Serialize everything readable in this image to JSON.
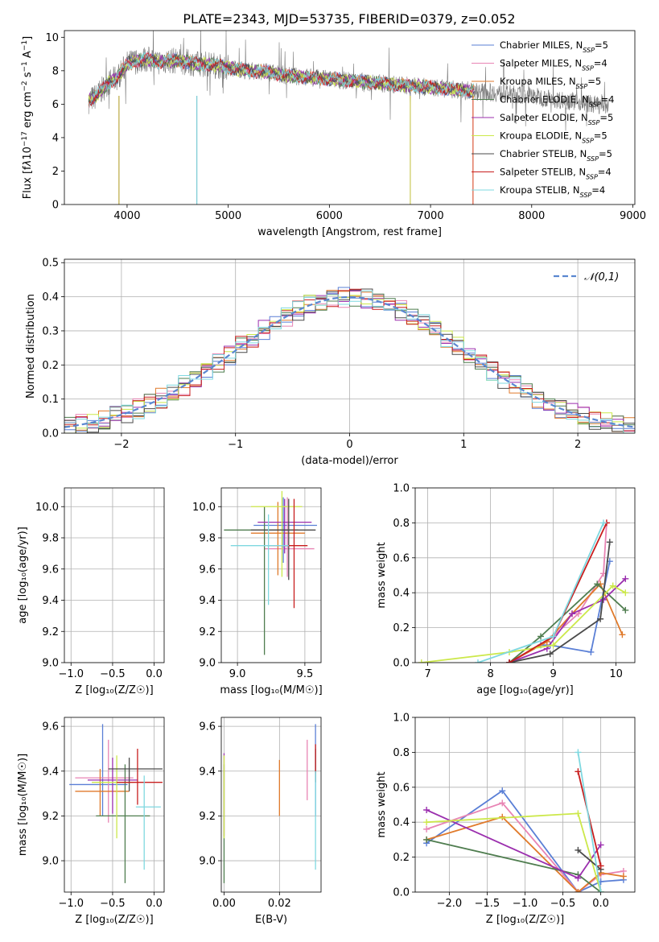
{
  "figure": {
    "title": "PLATE=2343, MJD=53735, FIBERID=0379, z=0.052"
  },
  "models": [
    {
      "name": "Chabrier MILES",
      "nssp": 5,
      "color": "#5a7fd6"
    },
    {
      "name": "Salpeter MILES",
      "nssp": 4,
      "color": "#e884b4"
    },
    {
      "name": "Kroupa MILES",
      "nssp": 5,
      "color": "#e07a2b"
    },
    {
      "name": "Chabrier ELODIE",
      "nssp": 4,
      "color": "#4f7d4f"
    },
    {
      "name": "Salpeter ELODIE",
      "nssp": 5,
      "color": "#9b2fae"
    },
    {
      "name": "Kroupa ELODIE",
      "nssp": 5,
      "color": "#cce84a"
    },
    {
      "name": "Chabrier STELIB",
      "nssp": 5,
      "color": "#4a4a4a"
    },
    {
      "name": "Salpeter STELIB",
      "nssp": 4,
      "color": "#c81e1e"
    },
    {
      "name": "Kroupa STELIB",
      "nssp": 4,
      "color": "#7fd8e0"
    }
  ],
  "chart_data": [
    {
      "type": "line",
      "panel": "spectrum",
      "xlabel": "wavelength [Angstrom, rest frame]",
      "ylabel_html": "Flux [f<tspan font-style='italic'>λ</tspan>10<tspan baseline-shift='super' font-size='9'>−17</tspan> erg cm<tspan baseline-shift='super' font-size='9'>−2</tspan> s<tspan baseline-shift='super' font-size='9'>−1</tspan> A<tspan baseline-shift='super' font-size='9'>−1</tspan>]",
      "xlim": [
        3380,
        9020
      ],
      "ylim": [
        0,
        10.4
      ],
      "xticks": [
        4000,
        5000,
        6000,
        7000,
        8000,
        9000
      ],
      "yticks": [
        0,
        2,
        4,
        6,
        8,
        10
      ],
      "data_continuum": {
        "x": [
          3620,
          3700,
          3800,
          3900,
          4000,
          4100,
          4200,
          4300,
          4400,
          4500,
          4600,
          4700,
          4800,
          4900,
          5000,
          5200,
          5400,
          5600,
          5800,
          6000,
          6200,
          6400,
          6600,
          6800,
          7000,
          7200,
          7400,
          7600,
          7800,
          8000,
          8200,
          8400,
          8600,
          8760
        ],
        "y": [
          6.2,
          6.5,
          7.2,
          7.6,
          8.4,
          8.6,
          8.7,
          8.5,
          8.6,
          8.6,
          8.5,
          8.4,
          8.4,
          8.3,
          8.2,
          8.0,
          7.9,
          7.7,
          7.6,
          7.5,
          7.4,
          7.3,
          7.2,
          7.1,
          7.0,
          6.9,
          6.8,
          6.7,
          6.6,
          6.5,
          6.3,
          6.2,
          6.0,
          5.9
        ]
      },
      "model_extent": [
        3620,
        7430
      ]
    },
    {
      "type": "bar",
      "panel": "residual-histogram",
      "xlabel": "(data-model)/error",
      "ylabel": "Normed distribution",
      "legend": "𝒩(0,1)",
      "xlim": [
        -2.5,
        2.5
      ],
      "ylim": [
        0,
        0.51
      ],
      "xticks": [
        -2,
        -1,
        0,
        1,
        2
      ],
      "yticks": [
        0.0,
        0.1,
        0.2,
        0.3,
        0.4,
        0.5
      ],
      "bin_width": 0.1
    },
    {
      "type": "scatter",
      "panel": "age-vs-Z",
      "xlabel": "Z [log₁₀(Z/Z☉)]",
      "ylabel": "age  [log₁₀(age/yr)]",
      "xlim": [
        -1.08,
        0.12
      ],
      "ylim": [
        9.0,
        10.12
      ],
      "xticks": [
        -1.0,
        -0.5,
        0.0
      ],
      "yticks": [
        9.0,
        9.2,
        9.4,
        9.6,
        9.8,
        10.0
      ],
      "points": [
        {
          "x": -0.6,
          "y": 9.88,
          "xerr": [
            0.45,
            0.33
          ],
          "yerr": [
            0.24,
            0.2
          ]
        },
        {
          "x": -0.55,
          "y": 9.74,
          "xerr": [
            0.4,
            0.3
          ],
          "yerr": [
            0.18,
            0.3
          ]
        },
        {
          "x": -0.55,
          "y": 9.83,
          "xerr": [
            0.35,
            0.3
          ],
          "yerr": [
            0.27,
            0.2
          ]
        },
        {
          "x": -0.35,
          "y": 9.79,
          "xerr": [
            0.3,
            0.25
          ],
          "yerr": [
            0.73,
            0.07
          ]
        },
        {
          "x": -0.25,
          "y": 9.9,
          "xerr": [
            0.3,
            0.05
          ],
          "yerr": [
            0.25,
            0.14
          ]
        },
        {
          "x": -0.45,
          "y": 9.8,
          "xerr": [
            0.3,
            0.2
          ],
          "yerr": [
            0.15,
            0.25
          ]
        },
        {
          "x": -0.2,
          "y": 9.88,
          "xerr": [
            0.25,
            0.3
          ],
          "yerr": [
            0.52,
            0.13
          ]
        },
        {
          "x": -0.2,
          "y": 9.75,
          "xerr": [
            0.2,
            0.25
          ],
          "yerr": [
            0.4,
            0.2
          ]
        },
        {
          "x": -0.15,
          "y": 9.75,
          "xerr": [
            0.1,
            0.2
          ],
          "yerr": [
            0.4,
            0.35
          ]
        }
      ]
    },
    {
      "type": "scatter",
      "panel": "age-vs-mass",
      "xlabel": "mass [log₁₀(M/M☉)]",
      "ylabel": "",
      "xlim": [
        8.88,
        9.62
      ],
      "ylim": [
        9.0,
        10.12
      ],
      "xticks": [
        9.0,
        9.5
      ],
      "yticks": [
        9.0,
        9.2,
        9.4,
        9.6,
        9.8,
        10.0
      ],
      "points": [
        {
          "x": 9.34,
          "y": 9.88,
          "xerr": [
            0.22,
            0.25
          ],
          "yerr": [
            0.24,
            0.18
          ]
        },
        {
          "x": 9.37,
          "y": 9.73,
          "xerr": [
            0.17,
            0.2
          ],
          "yerr": [
            0.18,
            0.33
          ]
        },
        {
          "x": 9.3,
          "y": 9.83,
          "xerr": [
            0.2,
            0.2
          ],
          "yerr": [
            0.27,
            0.2
          ]
        },
        {
          "x": 9.2,
          "y": 9.85,
          "xerr": [
            0.3,
            0.25
          ],
          "yerr": [
            0.8,
            0.15
          ]
        },
        {
          "x": 9.35,
          "y": 9.9,
          "xerr": [
            0.2,
            0.2
          ],
          "yerr": [
            0.2,
            0.15
          ]
        },
        {
          "x": 9.33,
          "y": 10.0,
          "xerr": [
            0.23,
            0.15
          ],
          "yerr": [
            0.45,
            0.1
          ]
        },
        {
          "x": 9.38,
          "y": 9.85,
          "xerr": [
            0.28,
            0.2
          ],
          "yerr": [
            0.32,
            0.2
          ]
        },
        {
          "x": 9.42,
          "y": 9.75,
          "xerr": [
            0.2,
            0.1
          ],
          "yerr": [
            0.4,
            0.3
          ]
        },
        {
          "x": 9.23,
          "y": 9.75,
          "xerr": [
            0.28,
            0.15
          ],
          "yerr": [
            0.38,
            0.2
          ]
        }
      ]
    },
    {
      "type": "line",
      "panel": "mass-weight-vs-age",
      "xlabel": "age  [log₁₀(age/yr)]",
      "ylabel": "mass weight",
      "xlim": [
        6.8,
        10.3
      ],
      "ylim": [
        0,
        1.0
      ],
      "xticks": [
        7,
        8,
        9,
        10
      ],
      "yticks": [
        0.0,
        0.2,
        0.4,
        0.6,
        0.8,
        1.0
      ],
      "series": [
        {
          "x": [
            8.3,
            8.8,
            8.95,
            9.6,
            9.9
          ],
          "y": [
            0.0,
            0.1,
            0.1,
            0.06,
            0.58
          ]
        },
        {
          "x": [
            8.3,
            8.9,
            9.4,
            9.8,
            9.85
          ],
          "y": [
            0.0,
            0.12,
            0.28,
            0.51,
            0.8
          ]
        },
        {
          "x": [
            8.3,
            8.9,
            9.3,
            9.75,
            10.1
          ],
          "y": [
            0.0,
            0.12,
            0.28,
            0.45,
            0.16
          ]
        },
        {
          "x": [
            8.3,
            8.8,
            9.7,
            10.15
          ],
          "y": [
            0.0,
            0.15,
            0.45,
            0.3
          ]
        },
        {
          "x": [
            8.3,
            8.9,
            9.3,
            9.8,
            10.15
          ],
          "y": [
            0.0,
            0.08,
            0.28,
            0.36,
            0.48
          ]
        },
        {
          "x": [
            6.9,
            8.3,
            9.0,
            9.95,
            10.15
          ],
          "y": [
            0.0,
            0.06,
            0.1,
            0.44,
            0.4
          ]
        },
        {
          "x": [
            8.3,
            8.95,
            9.75,
            9.9
          ],
          "y": [
            0.0,
            0.05,
            0.25,
            0.69
          ]
        },
        {
          "x": [
            8.3,
            9.0,
            9.85
          ],
          "y": [
            0.0,
            0.15,
            0.8
          ]
        },
        {
          "x": [
            7.8,
            9.0,
            9.8
          ],
          "y": [
            0.0,
            0.15,
            0.8
          ]
        }
      ]
    },
    {
      "type": "scatter",
      "panel": "mass-vs-Z",
      "xlabel": "Z [log₁₀(Z/Z☉)]",
      "ylabel": "mass [log₁₀(M/M☉)]",
      "xlim": [
        -1.08,
        0.12
      ],
      "ylim": [
        8.86,
        9.64
      ],
      "xticks": [
        -1.0,
        -0.5,
        0.0
      ],
      "yticks": [
        9.0,
        9.2,
        9.4,
        9.6
      ],
      "points": [
        {
          "x": -0.62,
          "y": 9.34,
          "xerr": [
            0.4,
            0.3
          ],
          "yerr": [
            0.14,
            0.27
          ]
        },
        {
          "x": -0.55,
          "y": 9.37,
          "xerr": [
            0.4,
            0.3
          ],
          "yerr": [
            0.2,
            0.17
          ]
        },
        {
          "x": -0.65,
          "y": 9.31,
          "xerr": [
            0.3,
            0.35
          ],
          "yerr": [
            0.11,
            0.1
          ]
        },
        {
          "x": -0.35,
          "y": 9.2,
          "xerr": [
            0.35,
            0.3
          ],
          "yerr": [
            0.3,
            0.23
          ]
        },
        {
          "x": -0.5,
          "y": 9.36,
          "xerr": [
            0.3,
            0.3
          ],
          "yerr": [
            0.15,
            0.1
          ]
        },
        {
          "x": -0.45,
          "y": 9.35,
          "xerr": [
            0.3,
            0.2
          ],
          "yerr": [
            0.25,
            0.12
          ]
        },
        {
          "x": -0.3,
          "y": 9.41,
          "xerr": [
            0.25,
            0.4
          ],
          "yerr": [
            0.1,
            0.05
          ]
        },
        {
          "x": -0.2,
          "y": 9.35,
          "xerr": [
            0.25,
            0.3
          ],
          "yerr": [
            0.1,
            0.15
          ]
        },
        {
          "x": -0.12,
          "y": 9.24,
          "xerr": [
            0.1,
            0.2
          ],
          "yerr": [
            0.28,
            0.14
          ]
        }
      ]
    },
    {
      "type": "scatter",
      "panel": "mass-vs-EBV",
      "xlabel": "E(B-V)",
      "ylabel": "",
      "xlim": [
        -0.001,
        0.035
      ],
      "ylim": [
        8.86,
        9.64
      ],
      "xticks": [
        0.0,
        0.02
      ],
      "xtick_labels": [
        "0.00",
        "0.02"
      ],
      "yticks": [
        9.0,
        9.2,
        9.4,
        9.6
      ],
      "points": [
        {
          "x": 0.033,
          "y": 9.34,
          "yerr": [
            0.14,
            0.27
          ]
        },
        {
          "x": 0.03,
          "y": 9.37,
          "yerr": [
            0.1,
            0.17
          ]
        },
        {
          "x": 0.02,
          "y": 9.31,
          "yerr": [
            0.11,
            0.14
          ]
        },
        {
          "x": 0.0,
          "y": 9.2,
          "yerr": [
            0.3,
            0.23
          ]
        },
        {
          "x": 0.0,
          "y": 9.36,
          "yerr": [
            0.25,
            0.12
          ]
        },
        {
          "x": 0.0,
          "y": 9.35,
          "yerr": [
            0.25,
            0.12
          ]
        },
        {
          "x": 0.033,
          "y": 9.4,
          "yerr": [
            0.05,
            0.1
          ]
        },
        {
          "x": 0.033,
          "y": 9.46,
          "yerr": [
            0.07,
            0.06
          ]
        },
        {
          "x": 0.033,
          "y": 9.24,
          "yerr": [
            0.28,
            0.16
          ]
        }
      ]
    },
    {
      "type": "line",
      "panel": "mass-weight-vs-Z",
      "xlabel": "Z [log₁₀(Z/Z☉)]",
      "ylabel": "mass weight",
      "xlim": [
        -2.45,
        0.45
      ],
      "ylim": [
        0,
        1.0
      ],
      "xticks": [
        -2.0,
        -1.5,
        -1.0,
        -0.5,
        0.0
      ],
      "yticks": [
        0.0,
        0.2,
        0.4,
        0.6,
        0.8,
        1.0
      ],
      "series": [
        {
          "x": [
            -2.3,
            -1.3,
            -0.3,
            0.0,
            0.3
          ],
          "y": [
            0.28,
            0.58,
            0.0,
            0.06,
            0.07
          ]
        },
        {
          "x": [
            -2.3,
            -1.3,
            -0.3,
            0.0,
            0.3
          ],
          "y": [
            0.36,
            0.51,
            0.0,
            0.1,
            0.12
          ]
        },
        {
          "x": [
            -2.3,
            -1.3,
            -0.3,
            0.0,
            0.3
          ],
          "y": [
            0.3,
            0.43,
            0.0,
            0.11,
            0.09
          ]
        },
        {
          "x": [
            -2.3,
            -0.3,
            0.0
          ],
          "y": [
            0.3,
            0.1,
            0.0
          ]
        },
        {
          "x": [
            -2.3,
            -0.3,
            0.0
          ],
          "y": [
            0.47,
            0.08,
            0.27
          ]
        },
        {
          "x": [
            -2.3,
            -0.3,
            0.0
          ],
          "y": [
            0.4,
            0.45,
            0.0
          ]
        },
        {
          "x": [
            -0.3,
            0.0
          ],
          "y": [
            0.24,
            0.13
          ]
        },
        {
          "x": [
            -0.3,
            0.0
          ],
          "y": [
            0.69,
            0.15
          ]
        },
        {
          "x": [
            -0.3,
            0.0
          ],
          "y": [
            0.8,
            0.0
          ]
        }
      ]
    }
  ]
}
